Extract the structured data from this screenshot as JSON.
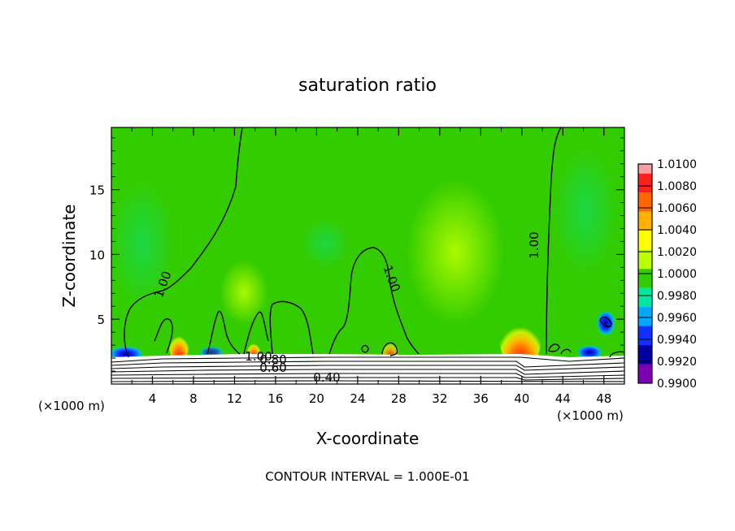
{
  "chart_data": {
    "type": "heatmap",
    "title": "saturation ratio",
    "xlabel": "X-coordinate",
    "ylabel": "Z-coordinate",
    "x_unit_left": "(×1000 m)",
    "x_unit_right": "(×1000 m)",
    "xlim": [
      0,
      50
    ],
    "ylim": [
      0,
      19.8
    ],
    "x_ticks": [
      4,
      8,
      12,
      16,
      20,
      24,
      28,
      32,
      36,
      40,
      44,
      48
    ],
    "y_ticks": [
      5,
      10,
      15
    ],
    "colorbar": {
      "levels": [
        "1.0100",
        "1.0080",
        "1.0060",
        "1.0040",
        "1.0020",
        "1.0000",
        "0.9980",
        "0.9960",
        "0.9940",
        "0.9920",
        "0.9900"
      ],
      "colors": [
        "#f4a0a0",
        "#ff2020",
        "#ff6600",
        "#ffb000",
        "#ffff00",
        "#b8ff00",
        "#33cc00",
        "#00e8a0",
        "#00a8ff",
        "#1030ff",
        "#0000a0",
        "#7a00b0"
      ]
    },
    "contour_labels": [
      "1.00",
      "1.00",
      "1.00",
      "1.00",
      "0.80",
      "0.60",
      "0.40"
    ],
    "footer": "CONTOUR INTERVAL = 1.000E-01"
  }
}
